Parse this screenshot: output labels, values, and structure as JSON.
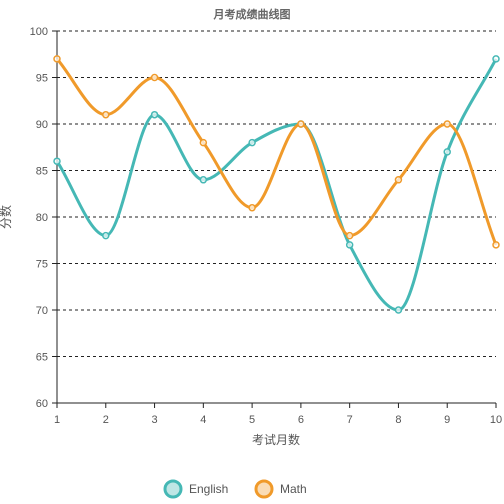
{
  "chart_data": {
    "type": "line",
    "title": "月考成绩曲线图",
    "xlabel": "考试月数",
    "ylabel": "分数",
    "categories": [
      "1",
      "2",
      "3",
      "4",
      "5",
      "6",
      "7",
      "8",
      "9",
      "10"
    ],
    "ylim": [
      60,
      100
    ],
    "yticks": [
      60,
      65,
      70,
      75,
      80,
      85,
      90,
      95,
      100
    ],
    "grid": true,
    "smooth": true,
    "legend_position": "bottom",
    "series": [
      {
        "name": "English",
        "color": "#45b8b5",
        "values": [
          86,
          78,
          91,
          84,
          88,
          90,
          77,
          70,
          87,
          97
        ]
      },
      {
        "name": "Math",
        "color": "#f09a2a",
        "values": [
          97,
          91,
          95,
          88,
          81,
          90,
          78,
          84,
          90,
          77
        ]
      }
    ]
  }
}
